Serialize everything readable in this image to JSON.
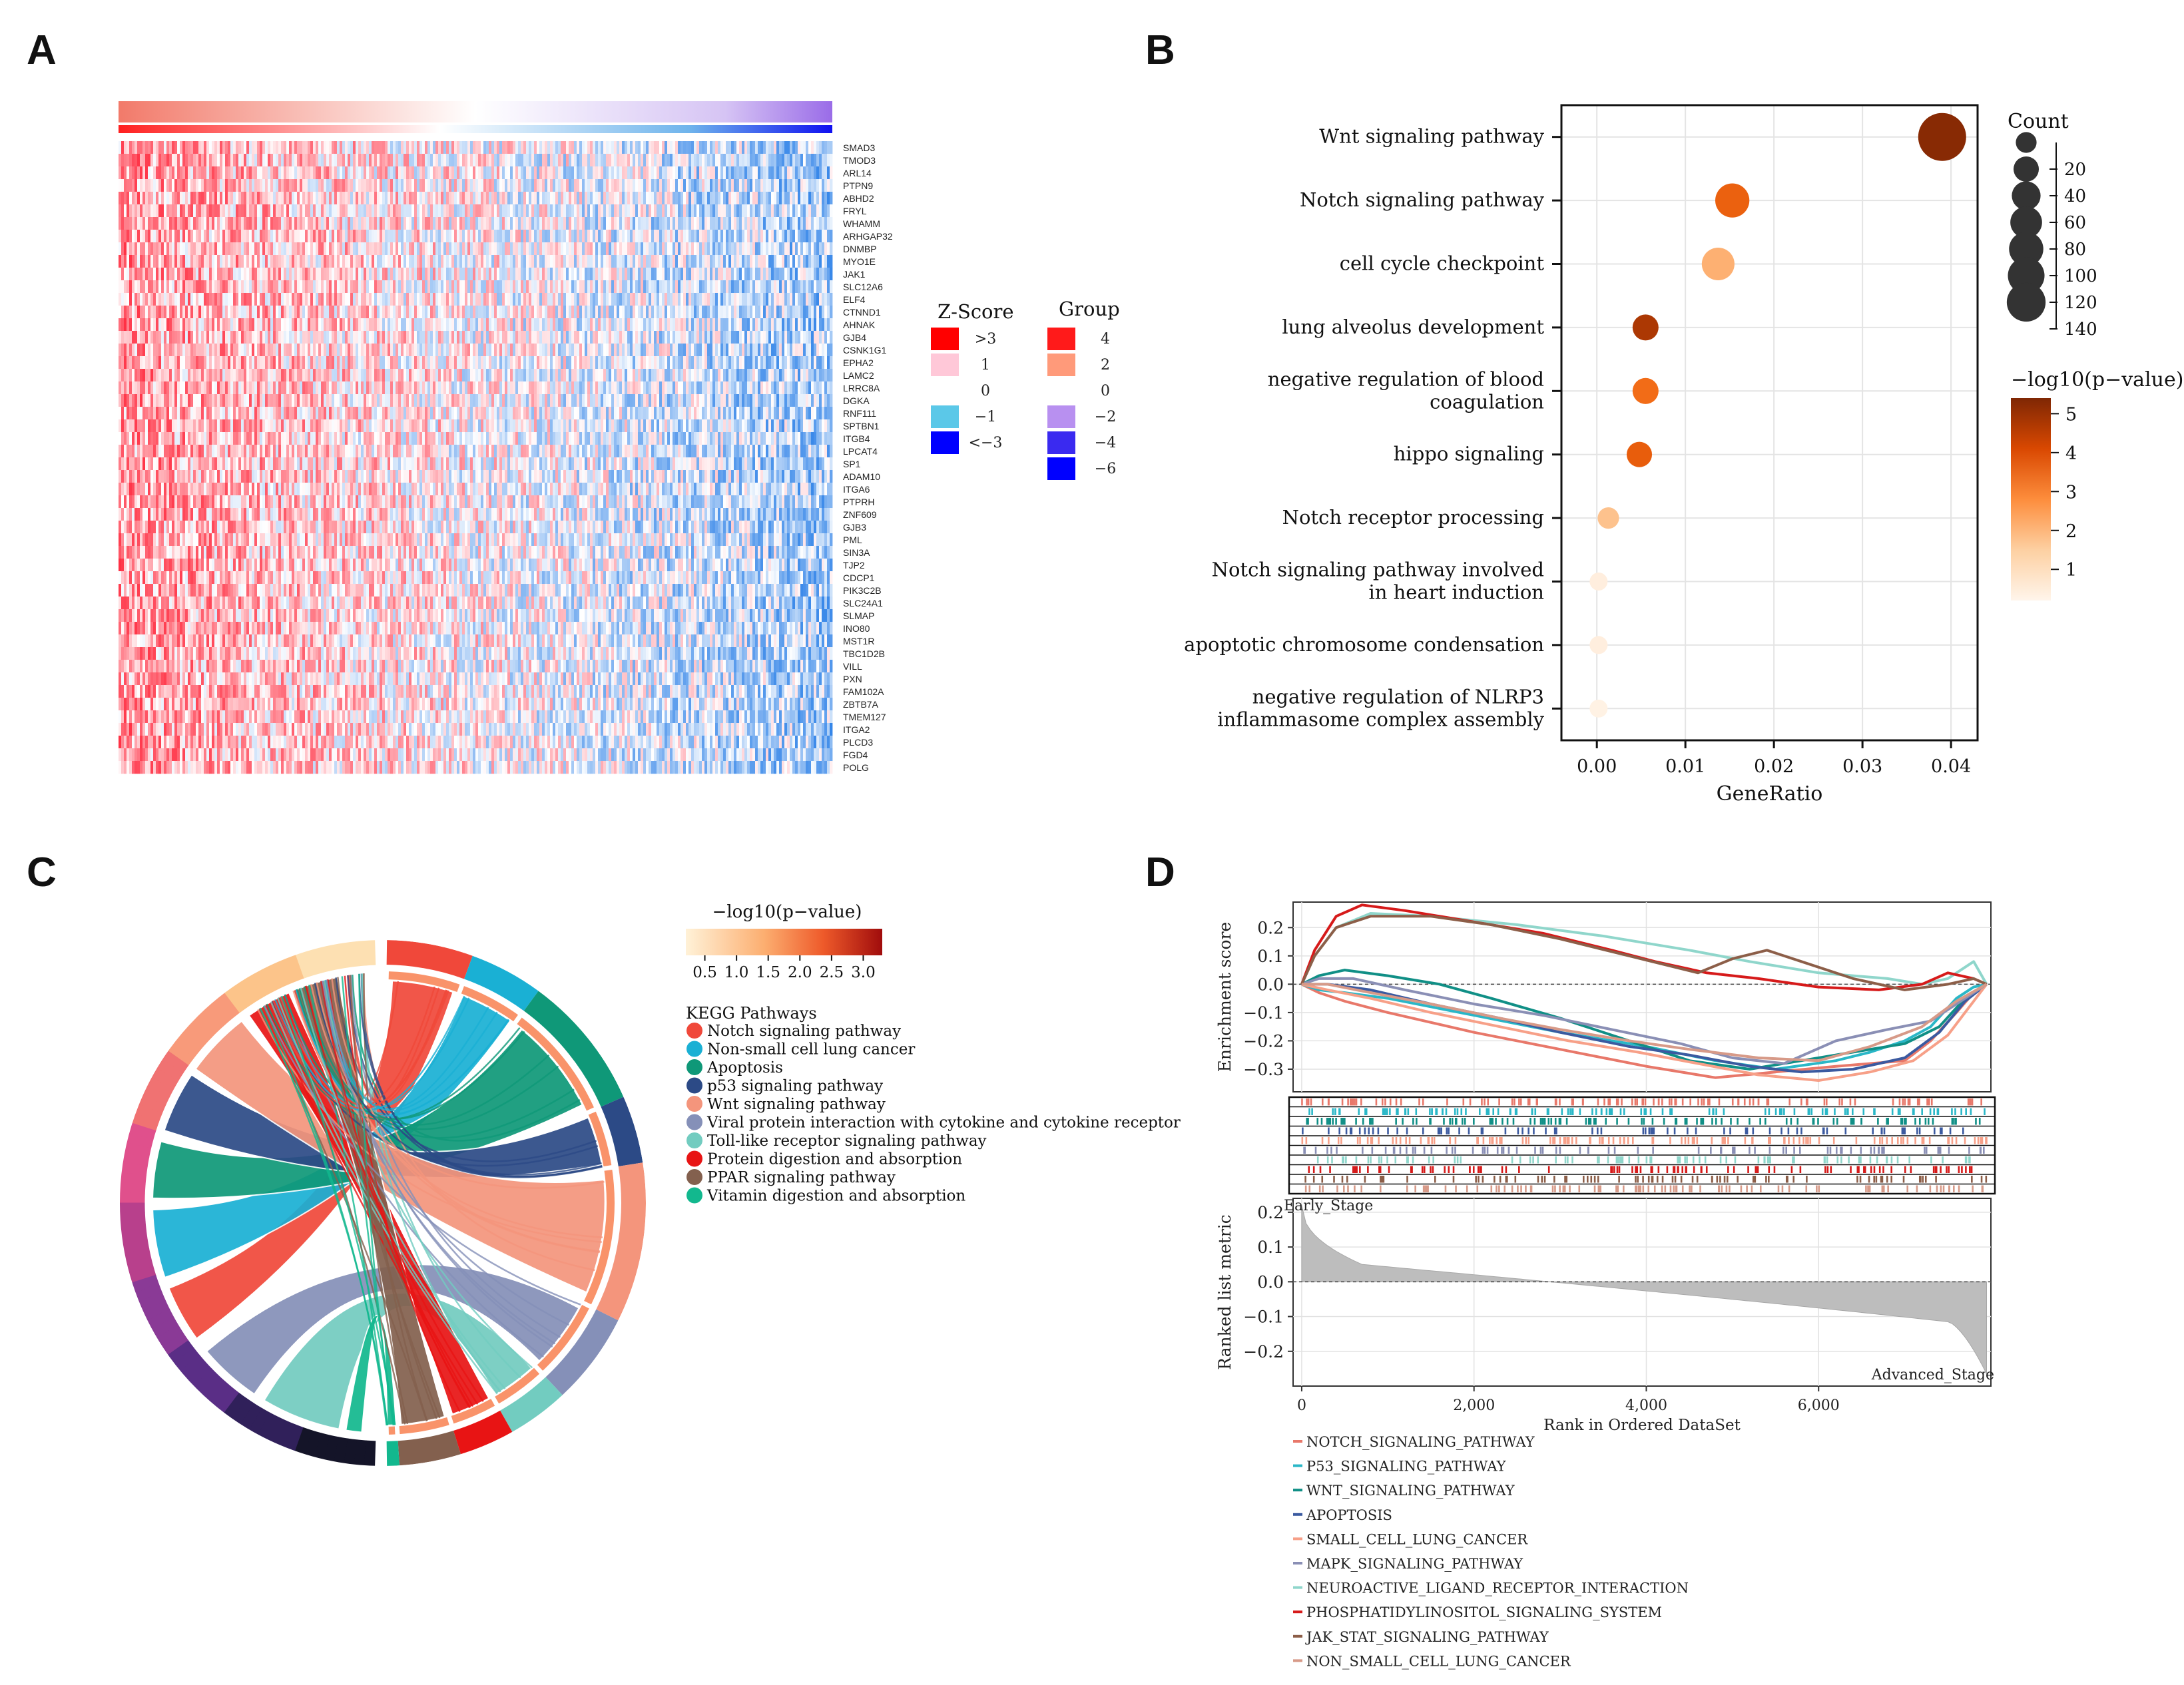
{
  "panels": {
    "A": "A",
    "B": "B",
    "C": "C",
    "D": "D"
  },
  "chart_data": [
    {
      "panel": "A",
      "type": "heatmap",
      "title": "",
      "genes": [
        "SMAD3",
        "TMOD3",
        "ARL14",
        "PTPN9",
        "ABHD2",
        "FRYL",
        "WHAMM",
        "ARHGAP32",
        "DNMBP",
        "MYO1E",
        "JAK1",
        "SLC12A6",
        "ELF4",
        "CTNND1",
        "AHNAK",
        "GJB4",
        "CSNK1G1",
        "EPHA2",
        "LAMC2",
        "LRRC8A",
        "DGKA",
        "RNF111",
        "SPTBN1",
        "ITGB4",
        "LPCAT4",
        "SP1",
        "ADAM10",
        "ITGA6",
        "PTPRH",
        "ZNF609",
        "GJB3",
        "PML",
        "SIN3A",
        "TJP2",
        "CDCP1",
        "PIK3C2B",
        "SLC24A1",
        "SLMAP",
        "INO80",
        "MST1R",
        "TBC1D2B",
        "VILL",
        "PXN",
        "FAM102A",
        "ZBTB7A",
        "TMEM127",
        "ITGA2",
        "PLCD3",
        "FGD4",
        "POLG"
      ],
      "zscore_legend": {
        "title": "Z-Score",
        "labels": [
          ">3",
          "1",
          "0",
          "−1",
          "<−3"
        ],
        "colors": [
          "#ff0000",
          "#ffc8d8",
          "#ffffff",
          "#5bc8e8",
          "#0000ff"
        ]
      },
      "group_legend": {
        "title": "Group",
        "labels": [
          "4",
          "2",
          "0",
          "−2",
          "−4",
          "−6"
        ],
        "colors": [
          "#ff1a1a",
          "#ff9a7a",
          "#ffffff",
          "#b890f0",
          "#3a2af0",
          "#0000ff"
        ]
      }
    },
    {
      "panel": "B",
      "type": "scatter",
      "xlabel": "GeneRatio",
      "ylabel": "",
      "xlim": [
        -0.004,
        0.043
      ],
      "xticks": [
        "0.00",
        "0.01",
        "0.02",
        "0.03",
        "0.04"
      ],
      "xtick_values": [
        0,
        0.01,
        0.02,
        0.03,
        0.04
      ],
      "terms": [
        {
          "label": [
            "Wnt signaling pathway"
          ],
          "gene_ratio": 0.039,
          "count": 145,
          "neg_log10_p": 5.3
        },
        {
          "label": [
            "Notch signaling pathway"
          ],
          "gene_ratio": 0.0153,
          "count": 55,
          "neg_log10_p": 3.8
        },
        {
          "label": [
            "cell cycle checkpoint"
          ],
          "gene_ratio": 0.0137,
          "count": 48,
          "neg_log10_p": 1.9
        },
        {
          "label": [
            "lung alveolus development"
          ],
          "gene_ratio": 0.0055,
          "count": 22,
          "neg_log10_p": 4.9
        },
        {
          "label": [
            "negative regulation of blood",
            "coagulation"
          ],
          "gene_ratio": 0.0055,
          "count": 22,
          "neg_log10_p": 3.5
        },
        {
          "label": [
            "hippo signaling"
          ],
          "gene_ratio": 0.0048,
          "count": 20,
          "neg_log10_p": 3.9
        },
        {
          "label": [
            "Notch receptor processing"
          ],
          "gene_ratio": 0.0013,
          "count": 10,
          "neg_log10_p": 1.6
        },
        {
          "label": [
            "Notch signaling pathway involved",
            "in heart induction"
          ],
          "gene_ratio": 0.0002,
          "count": 4,
          "neg_log10_p": 0.4
        },
        {
          "label": [
            "apoptotic chromosome condensation"
          ],
          "gene_ratio": 0.0002,
          "count": 4,
          "neg_log10_p": 0.4
        },
        {
          "label": [
            "negative regulation of NLRP3",
            "inflammasome complex assembly"
          ],
          "gene_ratio": 0.0002,
          "count": 4,
          "neg_log10_p": 0.3
        }
      ],
      "size_legend": {
        "title": "Count",
        "values": [
          20,
          40,
          60,
          80,
          100,
          120,
          140
        ]
      },
      "color_legend": {
        "title": "−log10(p−value)",
        "ticks": [
          1,
          2,
          3,
          4,
          5
        ],
        "range": [
          0.2,
          5.4
        ],
        "colors": [
          "#fff5eb",
          "#fdbe85",
          "#f16913",
          "#d94801",
          "#7f2704"
        ]
      }
    },
    {
      "panel": "C",
      "type": "chord",
      "color_legend": {
        "title": "−log10(p−value)",
        "ticks": [
          "0.5",
          "1.0",
          "1.5",
          "2.0",
          "2.5",
          "3.0"
        ],
        "range": [
          0.2,
          3.3
        ]
      },
      "legend_title": "KEGG Pathways",
      "pathways": [
        {
          "name": "Notch signaling pathway",
          "color": "#f0483a"
        },
        {
          "name": "Non-small cell lung cancer",
          "color": "#1ab0d4"
        },
        {
          "name": "Apoptosis",
          "color": "#0f9878"
        },
        {
          "name": "p53 signaling pathway",
          "color": "#2c4a86"
        },
        {
          "name": "Wnt signaling pathway",
          "color": "#f4957c"
        },
        {
          "name": "Viral protein interaction with cytokine and cytokine receptor",
          "color": "#8590b8"
        },
        {
          "name": "Toll-like receptor signaling pathway",
          "color": "#72ccc0"
        },
        {
          "name": "Protein digestion and absorption",
          "color": "#e81414"
        },
        {
          "name": "PPAR signaling pathway",
          "color": "#83604e"
        },
        {
          "name": "Vitamin digestion and absorption",
          "color": "#12b88e"
        }
      ]
    },
    {
      "panel": "D",
      "type": "line",
      "ylabel": "Enrichment score",
      "ylabel2": "Ranked list metric",
      "xlabel": "Rank in Ordered DataSet",
      "xlim": [
        -100,
        8000
      ],
      "xticks": [
        "0",
        "2,000",
        "4,000",
        "6,000"
      ],
      "xtick_values": [
        0,
        2000,
        4000,
        6000
      ],
      "es_ylim": [
        -0.38,
        0.29
      ],
      "es_yticks": [
        "0.2",
        "0.1",
        "0.0",
        "−0.1",
        "−0.2",
        "−0.3"
      ],
      "es_ytick_values": [
        0.2,
        0.1,
        0.0,
        -0.1,
        -0.2,
        -0.3
      ],
      "rank_ylim": [
        -0.3,
        0.24
      ],
      "rank_yticks": [
        "0.2",
        "0.1",
        "0.0",
        "−0.1",
        "−0.2"
      ],
      "rank_ytick_values": [
        0.2,
        0.1,
        0.0,
        -0.1,
        -0.2
      ],
      "early_label": "Early_Stage",
      "advanced_label": "Advanced_Stage",
      "series": [
        {
          "name": "NOTCH_SIGNALING_PATHWAY",
          "color": "#e8786a",
          "x": [
            0,
            200,
            500,
            1000,
            2000,
            3000,
            4000,
            4800,
            5500,
            6200,
            6600,
            7000,
            7300,
            7600,
            7800,
            7950
          ],
          "y": [
            0,
            -0.03,
            -0.06,
            -0.1,
            -0.17,
            -0.23,
            -0.29,
            -0.33,
            -0.31,
            -0.29,
            -0.28,
            -0.27,
            -0.2,
            -0.1,
            -0.03,
            0
          ]
        },
        {
          "name": "P53_SIGNALING_PATHWAY",
          "color": "#2ab7c7",
          "x": [
            0,
            200,
            500,
            1000,
            2000,
            3000,
            4000,
            4800,
            5500,
            6200,
            6600,
            7000,
            7300,
            7600,
            7800,
            7950
          ],
          "y": [
            0,
            -0.02,
            -0.03,
            -0.05,
            -0.11,
            -0.17,
            -0.22,
            -0.27,
            -0.3,
            -0.27,
            -0.24,
            -0.2,
            -0.15,
            -0.05,
            -0.01,
            0
          ]
        },
        {
          "name": "WNT_SIGNALING_PATHWAY",
          "color": "#108f86",
          "x": [
            0,
            200,
            500,
            1000,
            1600,
            2200,
            3000,
            3800,
            4500,
            5200,
            5800,
            6400,
            7000,
            7400,
            7700,
            7950
          ],
          "y": [
            0,
            0.03,
            0.05,
            0.03,
            0.0,
            -0.05,
            -0.12,
            -0.2,
            -0.27,
            -0.3,
            -0.27,
            -0.24,
            -0.21,
            -0.15,
            -0.05,
            0
          ]
        },
        {
          "name": "APOPTOSIS",
          "color": "#3b5aa0",
          "x": [
            0,
            300,
            800,
            1500,
            2300,
            3000,
            3800,
            4500,
            5200,
            5800,
            6400,
            7000,
            7400,
            7700,
            7950
          ],
          "y": [
            0,
            0.0,
            -0.02,
            -0.07,
            -0.12,
            -0.17,
            -0.22,
            -0.25,
            -0.29,
            -0.31,
            -0.3,
            -0.26,
            -0.17,
            -0.06,
            0
          ]
        },
        {
          "name": "SMALL_CELL_LUNG_CANCER",
          "color": "#f7a088",
          "x": [
            0,
            300,
            800,
            1500,
            2300,
            3100,
            3900,
            4600,
            5300,
            6000,
            6600,
            7100,
            7500,
            7800,
            7950
          ],
          "y": [
            0,
            -0.02,
            -0.05,
            -0.1,
            -0.15,
            -0.2,
            -0.24,
            -0.28,
            -0.32,
            -0.34,
            -0.31,
            -0.27,
            -0.18,
            -0.06,
            0
          ]
        },
        {
          "name": "MAPK_SIGNALING_PATHWAY",
          "color": "#8a8fb5",
          "x": [
            0,
            200,
            600,
            1200,
            2000,
            2800,
            3600,
            4400,
            5000,
            5600,
            6200,
            6800,
            7300,
            7700,
            7950
          ],
          "y": [
            0,
            0.02,
            0.02,
            -0.02,
            -0.07,
            -0.11,
            -0.16,
            -0.21,
            -0.26,
            -0.28,
            -0.2,
            -0.16,
            -0.13,
            -0.05,
            0
          ]
        },
        {
          "name": "NEUROACTIVE_LIGAND_RECEPTOR_INTERACTION",
          "color": "#8fd6cb",
          "x": [
            0,
            150,
            400,
            800,
            1500,
            2500,
            3500,
            4500,
            5200,
            6000,
            6800,
            7200,
            7500,
            7800,
            7950
          ],
          "y": [
            0,
            0.1,
            0.2,
            0.25,
            0.24,
            0.21,
            0.17,
            0.12,
            0.08,
            0.04,
            0.02,
            0.0,
            0.02,
            0.08,
            0
          ]
        },
        {
          "name": "PHOSPHATIDYLINOSITOL_SIGNALING_SYSTEM",
          "color": "#d61a1a",
          "x": [
            0,
            150,
            400,
            700,
            1200,
            2000,
            2800,
            3600,
            4100,
            4700,
            5300,
            6000,
            6700,
            7200,
            7500,
            7800,
            7950
          ],
          "y": [
            0,
            0.12,
            0.24,
            0.28,
            0.26,
            0.22,
            0.18,
            0.12,
            0.08,
            0.04,
            0.02,
            -0.01,
            -0.02,
            0.0,
            0.04,
            0.02,
            0
          ]
        },
        {
          "name": "JAK_STAT_SIGNALING_PATHWAY",
          "color": "#8c5e48",
          "x": [
            0,
            150,
            400,
            800,
            1500,
            2200,
            3000,
            3800,
            4600,
            5000,
            5400,
            5800,
            6400,
            7000,
            7500,
            7800,
            7950
          ],
          "y": [
            0,
            0.1,
            0.2,
            0.24,
            0.24,
            0.21,
            0.16,
            0.1,
            0.04,
            0.09,
            0.12,
            0.08,
            0.02,
            -0.02,
            0.0,
            0.02,
            0
          ]
        },
        {
          "name": "NON_SMALL_CELL_LUNG_CANCER",
          "color": "#d79a88",
          "x": [
            0,
            300,
            800,
            1500,
            2300,
            3000,
            3800,
            4500,
            5300,
            6000,
            6600,
            7200,
            7600,
            7950
          ],
          "y": [
            0,
            0.0,
            -0.03,
            -0.07,
            -0.12,
            -0.16,
            -0.2,
            -0.23,
            -0.26,
            -0.27,
            -0.22,
            -0.15,
            -0.06,
            0
          ]
        }
      ]
    }
  ]
}
